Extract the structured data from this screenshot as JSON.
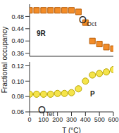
{
  "chart_data": [
    {
      "type": "scatter",
      "y_label": "Fractional occupancy",
      "tick_labels": "y",
      "xlim": [
        0,
        600
      ],
      "xticks": [
        0,
        100,
        200,
        300,
        400,
        500,
        600
      ],
      "ylim": [
        0.35,
        0.52
      ],
      "yticks": [
        0.36,
        {
          "value": 0.4,
          "label": "0.40"
        },
        0.44,
        0.48
      ],
      "annotations": [
        {
          "text": "O",
          "subscript": "Oct"
        },
        {
          "text": "9R"
        }
      ],
      "series": [
        {
          "color": "#f28c28",
          "marker": "square",
          "x": [
            0,
            50,
            100,
            150,
            200,
            250,
            300,
            350,
            400,
            450,
            500,
            550,
            600
          ],
          "values": [
            0.5,
            0.5,
            0.5,
            0.5,
            0.5,
            0.5,
            0.5,
            0.495,
            0.46,
            0.4,
            0.39,
            0.38,
            0.375
          ]
        }
      ]
    },
    {
      "type": "scatter",
      "x_label": "T (°C)",
      "xlim": [
        0,
        600
      ],
      "xticks": [
        0,
        100,
        200,
        300,
        400,
        500,
        600
      ],
      "ylim": [
        0.06,
        0.125
      ],
      "yticks": [
        0.06,
        0.08,
        {
          "value": 0.1,
          "label": "0.10"
        },
        0.12
      ],
      "annotations": [
        {
          "text": "O",
          "subscript": "Tet"
        },
        {
          "text": "P"
        }
      ],
      "series": [
        {
          "color": "#f5e44a",
          "marker": "circle",
          "x": [
            0,
            50,
            100,
            150,
            200,
            250,
            300,
            350,
            400,
            450,
            500,
            550,
            600
          ],
          "values": [
            0.083,
            0.083,
            0.083,
            0.083,
            0.084,
            0.084,
            0.085,
            0.09,
            0.1,
            0.108,
            0.11,
            0.112,
            0.115
          ]
        }
      ]
    }
  ]
}
